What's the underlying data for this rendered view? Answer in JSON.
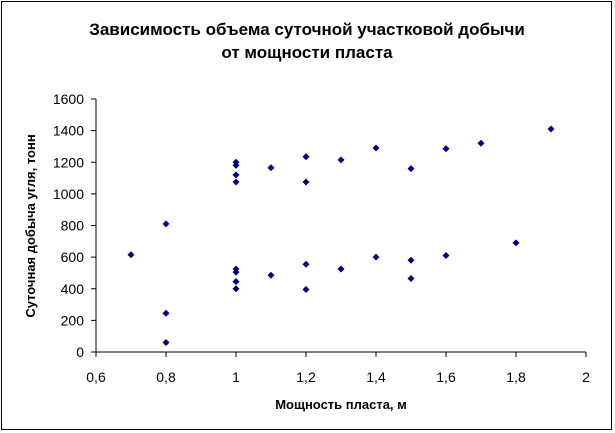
{
  "chart_data": {
    "type": "scatter",
    "title_lines": [
      "Зависимость объема суточной  участковой добычи",
      "от мощности пласта"
    ],
    "xlabel": "Мощность пласта, м",
    "ylabel": "Суточная добыча угля, тонн",
    "xlim": [
      0.6,
      2.0
    ],
    "ylim": [
      0,
      1600
    ],
    "x_ticks": [
      "0,6",
      "0,8",
      "1",
      "1,2",
      "1,4",
      "1,6",
      "1,8",
      "2"
    ],
    "y_ticks": [
      "0",
      "200",
      "400",
      "600",
      "800",
      "1000",
      "1200",
      "1400",
      "1600"
    ],
    "grid": false,
    "legend": false,
    "marker_color": "#000080",
    "marker": "diamond",
    "points": [
      {
        "x": 0.7,
        "y": 615
      },
      {
        "x": 0.8,
        "y": 810
      },
      {
        "x": 0.8,
        "y": 245
      },
      {
        "x": 0.8,
        "y": 60
      },
      {
        "x": 1.0,
        "y": 1200
      },
      {
        "x": 1.0,
        "y": 1180
      },
      {
        "x": 1.0,
        "y": 1120
      },
      {
        "x": 1.0,
        "y": 1075
      },
      {
        "x": 1.0,
        "y": 525
      },
      {
        "x": 1.0,
        "y": 505
      },
      {
        "x": 1.0,
        "y": 445
      },
      {
        "x": 1.0,
        "y": 400
      },
      {
        "x": 1.1,
        "y": 1165
      },
      {
        "x": 1.1,
        "y": 485
      },
      {
        "x": 1.2,
        "y": 1235
      },
      {
        "x": 1.2,
        "y": 1075
      },
      {
        "x": 1.2,
        "y": 555
      },
      {
        "x": 1.2,
        "y": 395
      },
      {
        "x": 1.3,
        "y": 1215
      },
      {
        "x": 1.3,
        "y": 525
      },
      {
        "x": 1.4,
        "y": 1290
      },
      {
        "x": 1.4,
        "y": 600
      },
      {
        "x": 1.5,
        "y": 1160
      },
      {
        "x": 1.5,
        "y": 580
      },
      {
        "x": 1.5,
        "y": 465
      },
      {
        "x": 1.6,
        "y": 1285
      },
      {
        "x": 1.6,
        "y": 610
      },
      {
        "x": 1.7,
        "y": 1320
      },
      {
        "x": 1.8,
        "y": 690
      },
      {
        "x": 1.9,
        "y": 1410
      }
    ]
  }
}
